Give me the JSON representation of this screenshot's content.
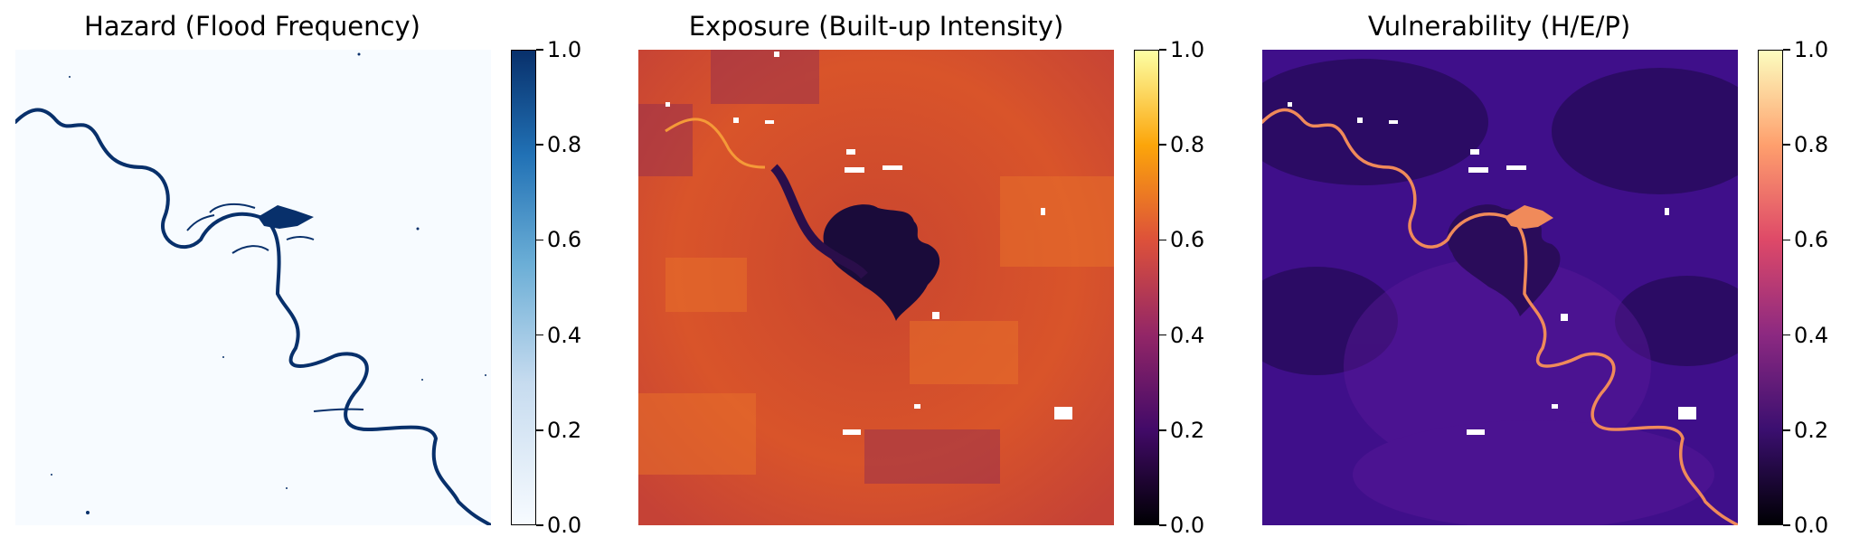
{
  "panels": [
    {
      "title": "Hazard (Flood Frequency)",
      "colormap": "Blues",
      "colorbar_ticks": [
        "0.0",
        "0.2",
        "0.4",
        "0.6",
        "0.8",
        "1.0"
      ]
    },
    {
      "title": "Exposure (Built-up Intensity)",
      "colormap": "inferno",
      "colorbar_ticks": [
        "0.0",
        "0.2",
        "0.4",
        "0.6",
        "0.8",
        "1.0"
      ]
    },
    {
      "title": "Vulnerability (H/E/P)",
      "colormap": "magma",
      "colorbar_ticks": [
        "0.0",
        "0.2",
        "0.4",
        "0.6",
        "0.8",
        "1.0"
      ]
    }
  ],
  "colors": {
    "hazard_background": "#f7fbff",
    "hazard_water": "#08306b",
    "exposure_base": "#d4502b",
    "exposure_dark": "#1a0b3a",
    "vulnerability_base": "#3f0f8a",
    "vulnerability_river": "#f08a5a"
  }
}
